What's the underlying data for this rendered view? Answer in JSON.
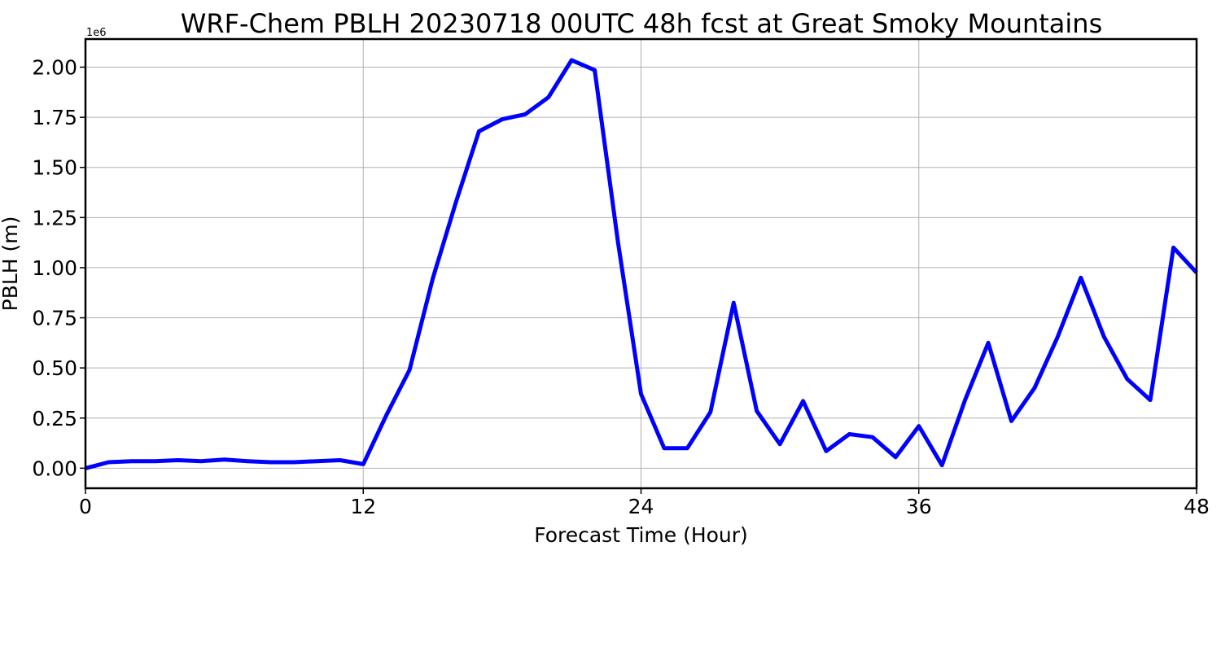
{
  "chart_data": {
    "type": "line",
    "title": "WRF-Chem PBLH  20230718 00UTC 48h fcst at Great Smoky Mountains",
    "xlabel": "Forecast Time (Hour)",
    "ylabel": "PBLH  (m)",
    "y_offset_label": "1e6",
    "y_scale": 1000000,
    "xlim": [
      0,
      48
    ],
    "ylim": [
      -0.1,
      2.14
    ],
    "x_ticks": [
      0,
      12,
      24,
      36,
      48
    ],
    "x_tick_labels": [
      "0",
      "12",
      "24",
      "36",
      "48"
    ],
    "y_ticks": [
      0,
      0.25,
      0.5,
      0.75,
      1.0,
      1.25,
      1.5,
      1.75,
      2.0
    ],
    "y_tick_labels": [
      "0.00",
      "0.25",
      "0.50",
      "0.75",
      "1.00",
      "1.25",
      "1.50",
      "1.75",
      "2.00"
    ],
    "grid": true,
    "line_color": "#0000ff",
    "x": [
      0,
      1,
      2,
      3,
      4,
      5,
      6,
      7,
      8,
      9,
      10,
      11,
      12,
      13,
      14,
      15,
      16,
      17,
      18,
      19,
      20,
      21,
      22,
      23,
      24,
      25,
      26,
      27,
      28,
      29,
      30,
      31,
      32,
      33,
      34,
      35,
      36,
      37,
      38,
      39,
      40,
      41,
      42,
      43,
      44,
      45,
      46,
      47,
      48
    ],
    "values": [
      0.0,
      0.03,
      0.035,
      0.035,
      0.04,
      0.035,
      0.043,
      0.035,
      0.03,
      0.03,
      0.035,
      0.04,
      0.02,
      0.265,
      0.49,
      0.945,
      1.325,
      1.68,
      1.74,
      1.765,
      1.85,
      2.035,
      1.985,
      1.13,
      0.37,
      0.1,
      0.1,
      0.28,
      0.825,
      0.285,
      0.12,
      0.335,
      0.085,
      0.17,
      0.155,
      0.055,
      0.21,
      0.015,
      0.34,
      0.625,
      0.235,
      0.4,
      0.655,
      0.95,
      0.655,
      0.445,
      0.34,
      1.1,
      0.975
    ]
  }
}
